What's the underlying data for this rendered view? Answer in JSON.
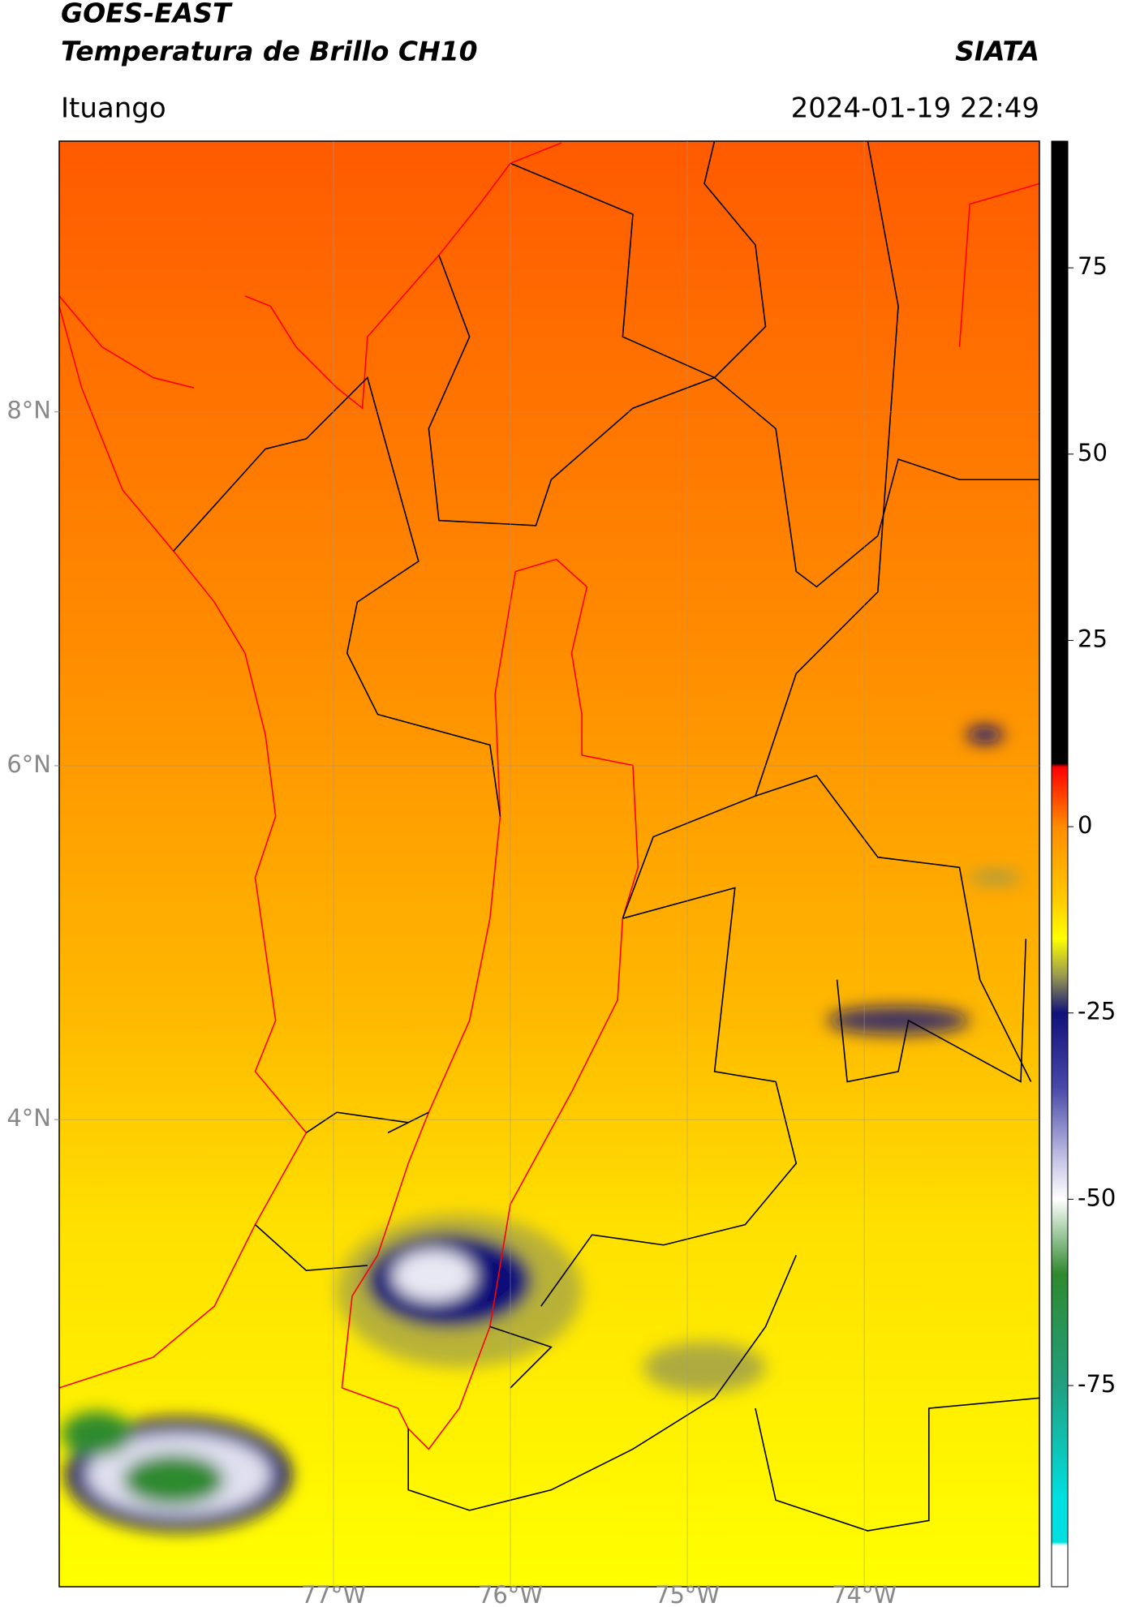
{
  "header": {
    "title": "GOES-EAST",
    "subtitle": "Temperatura de Brillo CH10",
    "source": "SIATA",
    "region": "Ituango",
    "datetime": "2024-01-19 22:49"
  },
  "map": {
    "xlim": [
      -78.55,
      -73.01
    ],
    "ylim": [
      1.36,
      9.53
    ],
    "xticks": [
      {
        "value": -77,
        "label": "77°W"
      },
      {
        "value": -76,
        "label": "76°W"
      },
      {
        "value": -75,
        "label": "75°W"
      },
      {
        "value": -74,
        "label": "74°W"
      }
    ],
    "yticks": [
      {
        "value": 8,
        "label": "8°N"
      },
      {
        "value": 6,
        "label": "6°N"
      },
      {
        "value": 4,
        "label": "4°N"
      }
    ],
    "grid": true
  },
  "colorbar": {
    "lim": [
      -102,
      92
    ],
    "ticks": [
      75,
      50,
      25,
      0,
      -25,
      -50,
      -75
    ],
    "stops": [
      {
        "value": 92,
        "color": "#000000"
      },
      {
        "value": 8.5,
        "color": "#000000"
      },
      {
        "value": 8,
        "color": "#ff0000"
      },
      {
        "value": 0,
        "color": "#ff8c00"
      },
      {
        "value": -10,
        "color": "#ffcc00"
      },
      {
        "value": -15,
        "color": "#ffff00"
      },
      {
        "value": -20,
        "color": "#9a9a50"
      },
      {
        "value": -25,
        "color": "#10107a"
      },
      {
        "value": -35,
        "color": "#4848a8"
      },
      {
        "value": -45,
        "color": "#c8c8e8"
      },
      {
        "value": -50,
        "color": "#ffffff"
      },
      {
        "value": -60,
        "color": "#2e8a2e"
      },
      {
        "value": -75,
        "color": "#20a080"
      },
      {
        "value": -90,
        "color": "#00e0e0"
      },
      {
        "value": -96,
        "color": "#00e0e0"
      },
      {
        "value": -96.5,
        "color": "#ffffff"
      },
      {
        "value": -102,
        "color": "#ffffff"
      }
    ]
  }
}
